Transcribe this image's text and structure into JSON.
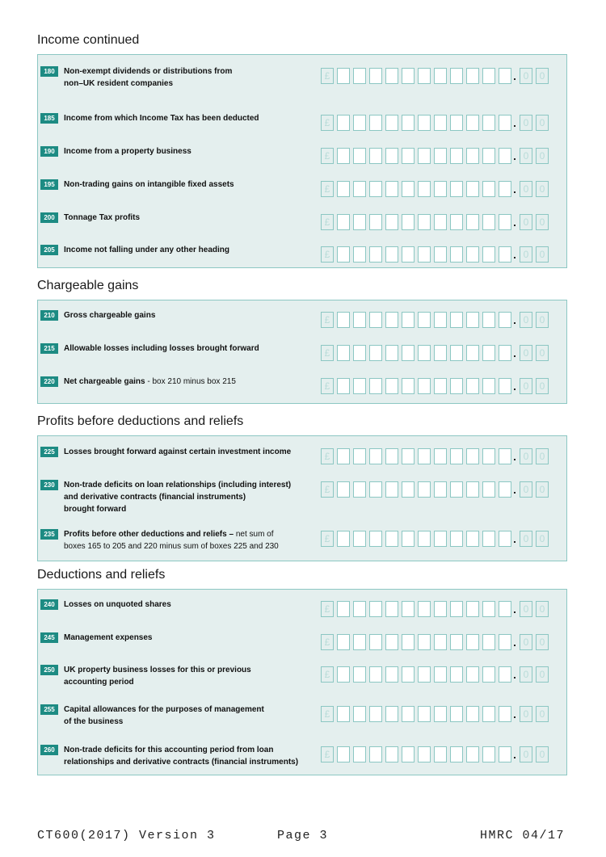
{
  "sections": [
    {
      "title": "Income  continued",
      "rows": [
        {
          "num": "180",
          "lines": [
            "Non-exempt dividends or distributions from",
            "non–UK resident companies"
          ]
        },
        {
          "num": "185",
          "lines": [
            "Income from which Income Tax has been deducted"
          ]
        },
        {
          "num": "190",
          "lines": [
            "Income from a property business"
          ]
        },
        {
          "num": "195",
          "lines": [
            "Non-trading gains on intangible fixed assets"
          ]
        },
        {
          "num": "200",
          "lines": [
            "Tonnage Tax profits"
          ]
        },
        {
          "num": "205",
          "lines": [
            "Income not falling under any other heading"
          ]
        }
      ]
    },
    {
      "title": "Chargeable gains",
      "rows": [
        {
          "num": "210",
          "lines": [
            "Gross chargeable gains"
          ]
        },
        {
          "num": "215",
          "lines": [
            "Allowable losses including losses brought forward"
          ]
        },
        {
          "num": "220",
          "lines": [
            "Net chargeable gains"
          ],
          "note": " - box 210 minus box 215"
        }
      ]
    },
    {
      "title": "Profits before deductions and reliefs",
      "rows": [
        {
          "num": "225",
          "lines": [
            "Losses brought forward against certain investment income"
          ]
        },
        {
          "num": "230",
          "lines": [
            "Non-trade deficits on loan relationships (including interest)",
            "and derivative contracts (financial instruments)",
            "brought forward"
          ]
        },
        {
          "num": "235",
          "lines": [
            "Profits before other deductions and reliefs –"
          ],
          "note": " net sum of",
          "lines_light": [
            "boxes 165 to 205 and 220 minus sum of boxes 225 and 230"
          ]
        }
      ]
    },
    {
      "title": "Deductions and reliefs",
      "rows": [
        {
          "num": "240",
          "lines": [
            "Losses on unquoted shares"
          ]
        },
        {
          "num": "245",
          "lines": [
            "Management expenses"
          ]
        },
        {
          "num": "250",
          "lines": [
            "UK property business losses for this or previous",
            "accounting period"
          ]
        },
        {
          "num": "255",
          "lines": [
            "Capital allowances for the purposes of management",
            "of the business"
          ]
        },
        {
          "num": "260",
          "lines": [
            "Non-trade deficits for this accounting period from loan",
            "relationships and derivative contracts (financial instruments)"
          ]
        }
      ]
    }
  ],
  "amount_field": {
    "currency": "£",
    "pence": [
      "0",
      "0"
    ],
    "pound_digits": 11
  },
  "footer": {
    "form": "CT600(2017) Version 3",
    "page": "Page 3",
    "issuer": "HMRC 04/17"
  },
  "colors": {
    "accent": "#1d8b83",
    "panel_bg": "#e4efee",
    "panel_border": "#8cc7c3"
  }
}
